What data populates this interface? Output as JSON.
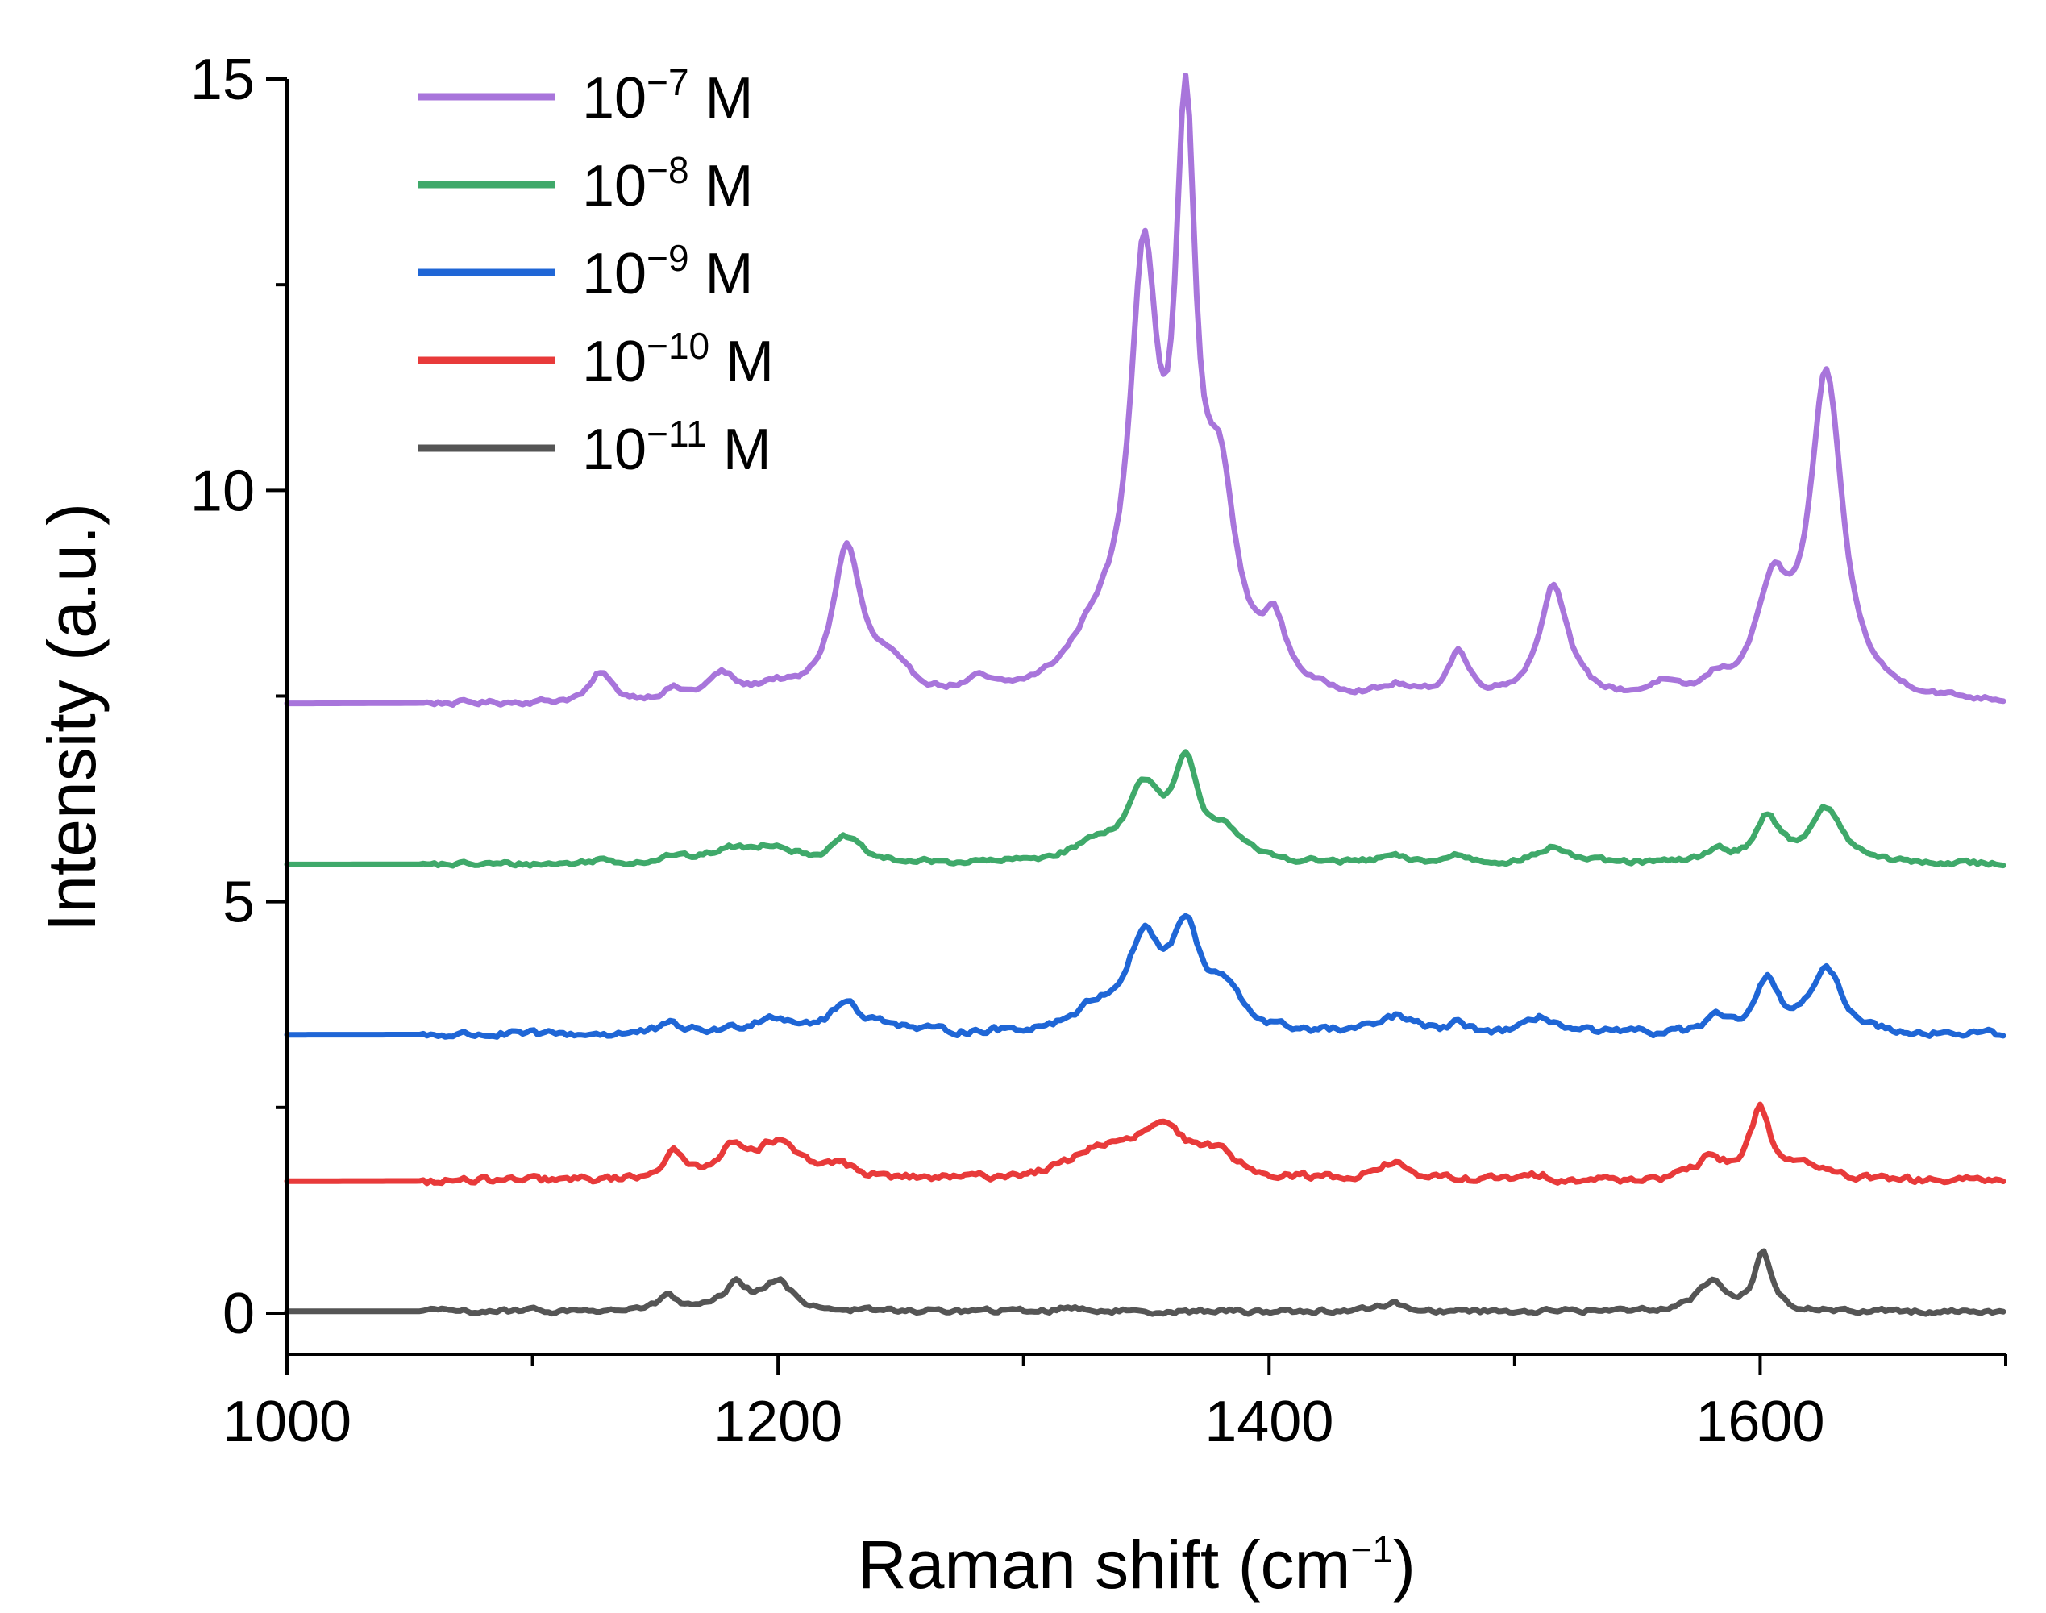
{
  "chart_data": {
    "type": "line",
    "title": "",
    "xlabel": "Raman shift (cm",
    "xlabel_sup": "−1",
    "xlabel_suffix": ")",
    "ylabel": "Intensity (a.u.)",
    "xlim": [
      1000,
      1700
    ],
    "ylim": [
      -0.5,
      15
    ],
    "x_ticks": [
      1000,
      1200,
      1400,
      1600
    ],
    "x_minor_ticks": [
      1100,
      1300,
      1500,
      1700
    ],
    "y_ticks": [
      0,
      5,
      10,
      15
    ],
    "y_minor_ticks": [
      2.5,
      7.5,
      12.5
    ],
    "x_tick_labels": [
      "1000",
      "1200",
      "1400",
      "1600"
    ],
    "y_tick_labels": [
      "0",
      "5",
      "10",
      "15"
    ],
    "legend_position": "top-left",
    "series": [
      {
        "name": "10",
        "sup": "−7",
        "unit": " M",
        "color": "#a875db",
        "baseline": 7.4,
        "noise": 0.05,
        "peaks": [
          [
            1128,
            0.35,
            5
          ],
          [
            1157,
            0.12,
            5
          ],
          [
            1177,
            0.3,
            7
          ],
          [
            1198,
            0.15,
            8
          ],
          [
            1228,
            1.8,
            7
          ],
          [
            1245,
            0.35,
            10
          ],
          [
            1282,
            0.15,
            6
          ],
          [
            1330,
            0.6,
            14
          ],
          [
            1349,
            4.9,
            7
          ],
          [
            1366,
            6.3,
            5
          ],
          [
            1380,
            2.2,
            8
          ],
          [
            1402,
            0.7,
            6
          ],
          [
            1452,
            0.12,
            6
          ],
          [
            1477,
            0.55,
            5
          ],
          [
            1516,
            1.4,
            7
          ],
          [
            1560,
            0.15,
            6
          ],
          [
            1582,
            0.15,
            5
          ],
          [
            1605,
            1.2,
            8
          ],
          [
            1627,
            3.9,
            8
          ]
        ],
        "end_value": 7.35
      },
      {
        "name": "10",
        "sup": "−8",
        "unit": " M",
        "color": "#3fa96a",
        "baseline": 5.45,
        "noise": 0.05,
        "peaks": [
          [
            1128,
            0.05,
            5
          ],
          [
            1157,
            0.08,
            6
          ],
          [
            1180,
            0.15,
            10
          ],
          [
            1198,
            0.2,
            10
          ],
          [
            1228,
            0.3,
            7
          ],
          [
            1330,
            0.2,
            12
          ],
          [
            1349,
            0.85,
            8
          ],
          [
            1366,
            1.1,
            6
          ],
          [
            1382,
            0.35,
            8
          ],
          [
            1450,
            0.08,
            6
          ],
          [
            1477,
            0.1,
            5
          ],
          [
            1516,
            0.2,
            8
          ],
          [
            1582,
            0.15,
            5
          ],
          [
            1603,
            0.55,
            6
          ],
          [
            1627,
            0.65,
            8
          ]
        ],
        "end_value": 5.42
      },
      {
        "name": "10",
        "sup": "−9",
        "unit": " M",
        "color": "#1f66d6",
        "baseline": 3.38,
        "noise": 0.07,
        "peaks": [
          [
            1157,
            0.1,
            6
          ],
          [
            1198,
            0.2,
            12
          ],
          [
            1228,
            0.35,
            7
          ],
          [
            1245,
            0.1,
            8
          ],
          [
            1330,
            0.25,
            12
          ],
          [
            1349,
            1.05,
            8
          ],
          [
            1366,
            1.15,
            7
          ],
          [
            1382,
            0.45,
            8
          ],
          [
            1452,
            0.2,
            8
          ],
          [
            1477,
            0.1,
            5
          ],
          [
            1512,
            0.2,
            7
          ],
          [
            1582,
            0.15,
            5
          ],
          [
            1603,
            0.6,
            6
          ],
          [
            1627,
            0.75,
            8
          ]
        ],
        "end_value": 3.38
      },
      {
        "name": "10",
        "sup": "−10",
        "unit": " M",
        "color": "#e83a3a",
        "baseline": 1.6,
        "noise": 0.07,
        "peaks": [
          [
            1157,
            0.3,
            5
          ],
          [
            1182,
            0.35,
            9
          ],
          [
            1200,
            0.4,
            10
          ],
          [
            1225,
            0.15,
            8
          ],
          [
            1330,
            0.3,
            14
          ],
          [
            1356,
            0.6,
            14
          ],
          [
            1380,
            0.25,
            8
          ],
          [
            1450,
            0.2,
            8
          ],
          [
            1510,
            0.05,
            8
          ],
          [
            1580,
            0.25,
            7
          ],
          [
            1600,
            0.85,
            5
          ],
          [
            1618,
            0.2,
            8
          ]
        ],
        "end_value": 1.6
      },
      {
        "name": "10",
        "sup": "−11",
        "unit": " M",
        "color": "#555555",
        "baseline": 0.02,
        "noise": 0.05,
        "peaks": [
          [
            1155,
            0.2,
            4
          ],
          [
            1183,
            0.3,
            6
          ],
          [
            1200,
            0.35,
            7
          ],
          [
            1320,
            0.05,
            6
          ],
          [
            1450,
            0.1,
            6
          ],
          [
            1580,
            0.35,
            7
          ],
          [
            1601,
            0.7,
            4
          ]
        ],
        "end_value": 0.0
      }
    ]
  }
}
